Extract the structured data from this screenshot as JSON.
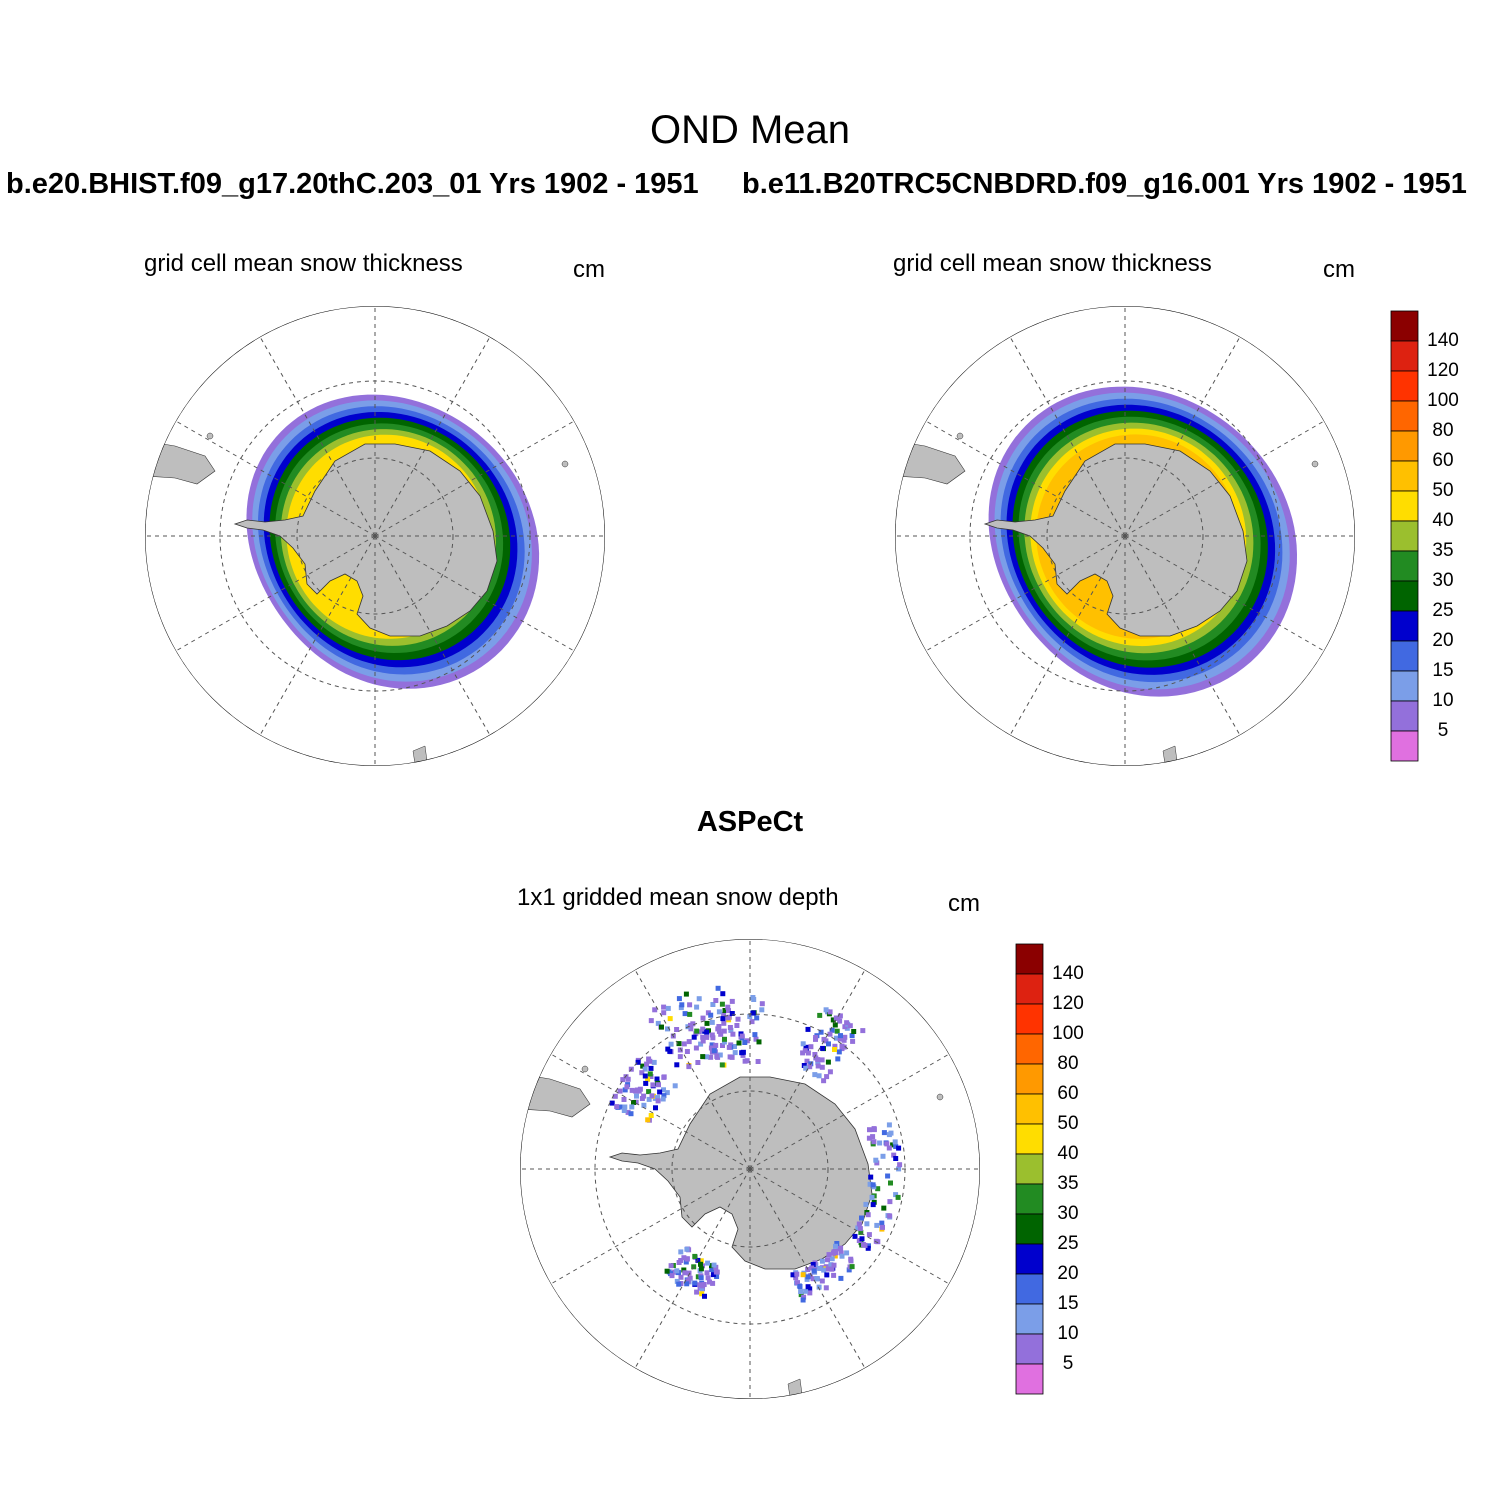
{
  "figure": {
    "main_title": "OND Mean",
    "panel_left_case": "b.e20.BHIST.f09_g17.20thC.203_01  Yrs 1902 - 1951",
    "panel_right_case": "b.e11.B20TRC5CNBDRD.f09_g16.001  Yrs 1902 - 1951",
    "panel_bottom_title": "ASPeCt"
  },
  "panels": [
    {
      "id": "left",
      "subtitle": "grid cell mean snow thickness",
      "units": "cm"
    },
    {
      "id": "right",
      "subtitle": "grid cell mean snow thickness",
      "units": "cm"
    },
    {
      "id": "bottom",
      "subtitle": "1x1 gridded mean snow depth",
      "units": "cm"
    }
  ],
  "colors": {
    "land": "#bebebe",
    "ocean": "#ffffff",
    "grid": "#555555"
  },
  "chart_data": [
    {
      "type": "heatmap",
      "projection": "south-polar-stereographic",
      "title": "grid cell mean snow thickness",
      "case": "b.e20.BHIST.f09_g17.20thC.203_01  Yrs 1902 - 1951",
      "units": "cm",
      "rings_by_snow_cm": [
        5,
        10,
        15,
        20,
        25,
        30,
        35,
        40
      ],
      "max_snow_cm": 50
    },
    {
      "type": "heatmap",
      "projection": "south-polar-stereographic",
      "title": "grid cell mean snow thickness",
      "case": "b.e11.B20TRC5CNBDRD.f09_g16.001  Yrs 1902 - 1951",
      "units": "cm",
      "rings_by_snow_cm": [
        5,
        10,
        15,
        20,
        25,
        30,
        35,
        40,
        50
      ],
      "max_snow_cm": 80
    },
    {
      "type": "heatmap",
      "projection": "south-polar-stereographic",
      "title": "1x1 gridded mean snow depth",
      "case": "ASPeCt",
      "units": "cm",
      "sparse_ship_tracks": true
    }
  ],
  "colorbar": {
    "levels": [
      "140",
      "120",
      "100",
      "80",
      "60",
      "50",
      "40",
      "35",
      "30",
      "25",
      "20",
      "15",
      "10",
      "5"
    ],
    "colors": [
      "#8b0000",
      "#dd2211",
      "#ff3300",
      "#ff6600",
      "#ff9900",
      "#ffc000",
      "#ffdd00",
      "#9bbf2e",
      "#228b22",
      "#006400",
      "#0000cd",
      "#4169e1",
      "#7b9ee8",
      "#9370db",
      "#e070e0"
    ]
  }
}
